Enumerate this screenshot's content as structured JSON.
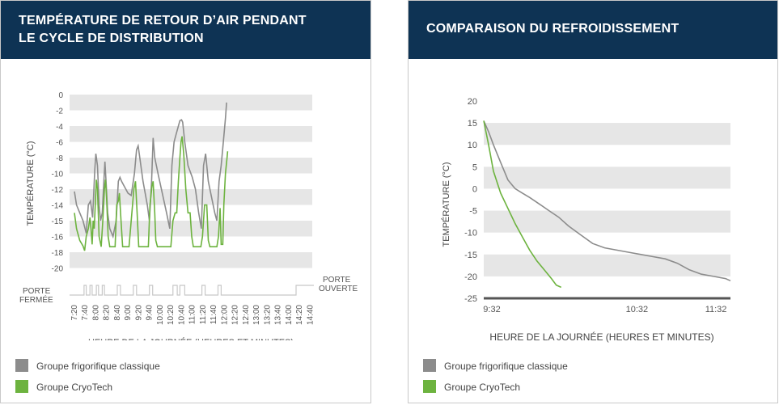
{
  "colors": {
    "header": "#0e3354",
    "classic": "#8c8c8c",
    "cryotech": "#6db33f",
    "band": "#e6e6e6"
  },
  "left": {
    "title_line1": "TEMPÉRATURE DE RETOUR D’AIR PENDANT",
    "title_line2": "LE CYCLE DE DISTRIBUTION",
    "door_closed": "PORTE\nFERMÉE",
    "door_open": "PORTE\nOUVERTE",
    "legend": [
      {
        "label": "Groupe frigorifique classique",
        "color": "#8c8c8c"
      },
      {
        "label": "Groupe CryoTech",
        "color": "#6db33f"
      }
    ]
  },
  "right": {
    "title": "COMPARAISON DU REFROIDISSEMENT",
    "legend": [
      {
        "label": "Groupe frigorifique classique",
        "color": "#8c8c8c"
      },
      {
        "label": "Groupe CryoTech",
        "color": "#6db33f"
      }
    ]
  },
  "chart_data": [
    {
      "type": "line",
      "title": "TEMPÉRATURE DE RETOUR D’AIR PENDANT LE CYCLE DE DISTRIBUTION",
      "xlabel": "HEURE DE LA JOURNÉE (HEURES ET MINUTES)",
      "ylabel": "TEMPÉRATURE (°C)",
      "y_ticks": [
        0,
        -2,
        -4,
        -6,
        -8,
        -10,
        -12,
        -14,
        -15,
        -16,
        -18,
        -20
      ],
      "x_ticks": [
        "7:20",
        "7:40",
        "8:00",
        "8:20",
        "8:40",
        "9:00",
        "9:20",
        "9:40",
        "10:00",
        "10:20",
        "10:40",
        "11:00",
        "11:20",
        "11:40",
        "12:00",
        "12:20",
        "12:40",
        "13:00",
        "13:20",
        "13:40",
        "14:00",
        "14:20",
        "14:40"
      ],
      "grid": "alternating bands",
      "series": [
        {
          "name": "Groupe frigorifique classique",
          "points": [
            [
              0,
              -12.3
            ],
            [
              0.2,
              -14
            ],
            [
              0.5,
              -14.5
            ],
            [
              0.8,
              -15
            ],
            [
              1.1,
              -15.8
            ],
            [
              1.3,
              -14
            ],
            [
              1.5,
              -13.5
            ],
            [
              1.7,
              -14.8
            ],
            [
              1.9,
              -9.5
            ],
            [
              2.0,
              -7.5
            ],
            [
              2.15,
              -9
            ],
            [
              2.3,
              -14
            ],
            [
              2.45,
              -15
            ],
            [
              2.6,
              -14.5
            ],
            [
              2.75,
              -11
            ],
            [
              2.85,
              -8.5
            ],
            [
              2.95,
              -11
            ],
            [
              3.1,
              -14.5
            ],
            [
              3.3,
              -15.5
            ],
            [
              3.6,
              -16
            ],
            [
              3.9,
              -15
            ],
            [
              4.1,
              -11
            ],
            [
              4.25,
              -10.5
            ],
            [
              4.4,
              -11
            ],
            [
              4.6,
              -11.5
            ],
            [
              5.0,
              -12.5
            ],
            [
              5.3,
              -12.8
            ],
            [
              5.6,
              -10
            ],
            [
              5.8,
              -7
            ],
            [
              5.95,
              -6.5
            ],
            [
              6.1,
              -8
            ],
            [
              6.4,
              -11
            ],
            [
              6.8,
              -14
            ],
            [
              7.0,
              -15
            ],
            [
              7.2,
              -11
            ],
            [
              7.35,
              -5.5
            ],
            [
              7.5,
              -8
            ],
            [
              7.8,
              -10
            ],
            [
              8.2,
              -12.5
            ],
            [
              8.6,
              -14.5
            ],
            [
              8.9,
              -15.5
            ],
            [
              9.1,
              -9
            ],
            [
              9.3,
              -6
            ],
            [
              9.5,
              -5
            ],
            [
              9.7,
              -4
            ],
            [
              9.85,
              -3.3
            ],
            [
              10.0,
              -3.2
            ],
            [
              10.1,
              -3.5
            ],
            [
              10.3,
              -6
            ],
            [
              10.6,
              -9
            ],
            [
              11.0,
              -10.5
            ],
            [
              11.3,
              -12
            ],
            [
              11.6,
              -14.5
            ],
            [
              11.85,
              -15.5
            ],
            [
              12.05,
              -9
            ],
            [
              12.25,
              -7.5
            ],
            [
              12.5,
              -11
            ],
            [
              12.8,
              -13
            ],
            [
              13.1,
              -14.5
            ],
            [
              13.3,
              -15
            ],
            [
              13.5,
              -11
            ],
            [
              13.7,
              -9
            ],
            [
              13.9,
              -6
            ],
            [
              14.1,
              -3
            ],
            [
              14.2,
              -1
            ]
          ]
        },
        {
          "name": "Groupe CryoTech",
          "points": [
            [
              0,
              -14.5
            ],
            [
              0.2,
              -15.5
            ],
            [
              0.5,
              -16.5
            ],
            [
              0.8,
              -17.2
            ],
            [
              0.95,
              -17.8
            ],
            [
              1.1,
              -16
            ],
            [
              1.3,
              -15.5
            ],
            [
              1.45,
              -14.8
            ],
            [
              1.55,
              -15.5
            ],
            [
              1.65,
              -17
            ],
            [
              1.75,
              -15
            ],
            [
              1.85,
              -15.5
            ],
            [
              2.05,
              -10.8
            ],
            [
              2.15,
              -12
            ],
            [
              2.3,
              -16
            ],
            [
              2.5,
              -17.3
            ],
            [
              2.65,
              -15
            ],
            [
              2.8,
              -12
            ],
            [
              2.9,
              -10.8
            ],
            [
              3.0,
              -13
            ],
            [
              3.15,
              -16
            ],
            [
              3.3,
              -17.3
            ],
            [
              3.8,
              -17.3
            ],
            [
              3.95,
              -14
            ],
            [
              4.1,
              -13.5
            ],
            [
              4.2,
              -12.5
            ],
            [
              4.35,
              -15
            ],
            [
              4.5,
              -17.3
            ],
            [
              5.1,
              -17.3
            ],
            [
              5.3,
              -15
            ],
            [
              5.55,
              -12
            ],
            [
              5.7,
              -11
            ],
            [
              5.85,
              -14.5
            ],
            [
              6.0,
              -17.3
            ],
            [
              6.9,
              -17.3
            ],
            [
              7.05,
              -14
            ],
            [
              7.25,
              -11.5
            ],
            [
              7.35,
              -11
            ],
            [
              7.5,
              -14.5
            ],
            [
              7.6,
              -16.5
            ],
            [
              7.75,
              -17.3
            ],
            [
              8.6,
              -17.3
            ],
            [
              9.0,
              -17.3
            ],
            [
              9.2,
              -15
            ],
            [
              9.4,
              -14.5
            ],
            [
              9.55,
              -14.5
            ],
            [
              9.7,
              -11
            ],
            [
              9.85,
              -8
            ],
            [
              9.95,
              -6
            ],
            [
              10.05,
              -5.3
            ],
            [
              10.2,
              -7.5
            ],
            [
              10.4,
              -12
            ],
            [
              10.6,
              -14.5
            ],
            [
              10.8,
              -14.5
            ],
            [
              10.95,
              -16
            ],
            [
              11.1,
              -17.3
            ],
            [
              11.8,
              -17.3
            ],
            [
              11.95,
              -16
            ],
            [
              12.15,
              -14
            ],
            [
              12.35,
              -14
            ],
            [
              12.5,
              -16.5
            ],
            [
              12.65,
              -17.3
            ],
            [
              13.3,
              -17.3
            ],
            [
              13.45,
              -16
            ],
            [
              13.6,
              -14.2
            ],
            [
              13.7,
              -17
            ],
            [
              13.85,
              -17
            ],
            [
              13.95,
              -14
            ],
            [
              14.1,
              -10
            ],
            [
              14.25,
              -8
            ],
            [
              14.3,
              -7.2
            ]
          ]
        }
      ]
    },
    {
      "type": "line",
      "title": "COMPARAISON DU REFROIDISSEMENT",
      "xlabel": "HEURE DE LA JOURNÉE (HEURES ET MINUTES)",
      "ylabel": "TEMPÉRATURE (°C)",
      "ylim": [
        -25,
        20
      ],
      "y_ticks": [
        20,
        15,
        10,
        5,
        0,
        -5,
        -10,
        -15,
        -20,
        -25
      ],
      "x_ticks": [
        "9:32",
        "10:32",
        "11:32"
      ],
      "grid": "alternating bands",
      "series": [
        {
          "name": "Groupe frigorifique classique",
          "points": [
            [
              0,
              15.5
            ],
            [
              2,
              13
            ],
            [
              4,
              10
            ],
            [
              7,
              6
            ],
            [
              10,
              2
            ],
            [
              13,
              0
            ],
            [
              16,
              -1
            ],
            [
              19,
              -2
            ],
            [
              23,
              -3.5
            ],
            [
              27,
              -5
            ],
            [
              31,
              -6.5
            ],
            [
              35,
              -8.5
            ],
            [
              40,
              -10.5
            ],
            [
              45,
              -12.5
            ],
            [
              50,
              -13.5
            ],
            [
              55,
              -14
            ],
            [
              60,
              -14.5
            ],
            [
              65,
              -15
            ],
            [
              70,
              -15.5
            ],
            [
              75,
              -16
            ],
            [
              80,
              -17
            ],
            [
              85,
              -18.5
            ],
            [
              90,
              -19.5
            ],
            [
              95,
              -20
            ],
            [
              100,
              -20.5
            ],
            [
              102,
              -21
            ]
          ]
        },
        {
          "name": "Groupe CryoTech",
          "points": [
            [
              0,
              15.5
            ],
            [
              2,
              10
            ],
            [
              4,
              4
            ],
            [
              7,
              -1
            ],
            [
              10,
              -4.5
            ],
            [
              13,
              -8
            ],
            [
              16,
              -11
            ],
            [
              19,
              -14
            ],
            [
              22,
              -16.5
            ],
            [
              25,
              -18.5
            ],
            [
              28,
              -20.5
            ],
            [
              30,
              -22
            ],
            [
              32,
              -22.5
            ]
          ]
        }
      ]
    }
  ]
}
